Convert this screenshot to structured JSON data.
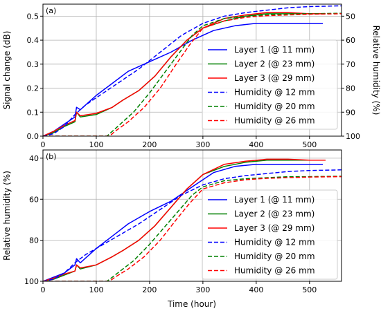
{
  "figure": {
    "xlabel": "Time (hour)"
  },
  "colors": {
    "blue": "#0000ff",
    "green": "#008000",
    "red": "#ff0000"
  },
  "chart_data": [
    {
      "type": "line",
      "panel_label": "(a)",
      "xlabel": "",
      "ylabel": "Signal change (dB)",
      "y2label": "Relative humidity (%)",
      "xlim": [
        0,
        560
      ],
      "ylim": [
        0,
        0.55
      ],
      "y2lim": [
        100,
        45
      ],
      "x_ticks": [
        0,
        100,
        200,
        300,
        400,
        500
      ],
      "y_ticks": [
        0.0,
        0.1,
        0.2,
        0.3,
        0.4,
        0.5
      ],
      "y2_ticks": [
        50,
        60,
        70,
        80,
        90,
        100
      ],
      "grid": true,
      "legend_position": "lower-right",
      "series": [
        {
          "name": "Layer 1 (@ 11 mm)",
          "axis": "left",
          "style": "solid",
          "color": "blue",
          "points": [
            [
              0,
              0
            ],
            [
              20,
              0.02
            ],
            [
              40,
              0.05
            ],
            [
              60,
              0.08
            ],
            [
              63,
              0.12
            ],
            [
              70,
              0.11
            ],
            [
              100,
              0.17
            ],
            [
              130,
              0.22
            ],
            [
              160,
              0.27
            ],
            [
              200,
              0.31
            ],
            [
              240,
              0.35
            ],
            [
              280,
              0.4
            ],
            [
              320,
              0.44
            ],
            [
              360,
              0.46
            ],
            [
              400,
              0.47
            ],
            [
              440,
              0.47
            ],
            [
              480,
              0.47
            ],
            [
              525,
              0.47
            ]
          ]
        },
        {
          "name": "Layer 2 (@ 23 mm)",
          "axis": "left",
          "style": "solid",
          "color": "green",
          "points": [
            [
              0,
              0
            ],
            [
              20,
              0.015
            ],
            [
              40,
              0.04
            ],
            [
              60,
              0.06
            ],
            [
              63,
              0.1
            ],
            [
              70,
              0.08
            ],
            [
              100,
              0.09
            ],
            [
              130,
              0.12
            ],
            [
              150,
              0.15
            ],
            [
              180,
              0.19
            ],
            [
              210,
              0.25
            ],
            [
              240,
              0.33
            ],
            [
              270,
              0.4
            ],
            [
              300,
              0.45
            ],
            [
              340,
              0.48
            ],
            [
              380,
              0.5
            ],
            [
              420,
              0.51
            ],
            [
              460,
              0.51
            ],
            [
              500,
              0.51
            ],
            [
              530,
              0.51
            ]
          ]
        },
        {
          "name": "Layer 3 (@ 29 mm)",
          "axis": "left",
          "style": "solid",
          "color": "red",
          "points": [
            [
              0,
              0
            ],
            [
              20,
              0.02
            ],
            [
              40,
              0.045
            ],
            [
              60,
              0.065
            ],
            [
              63,
              0.1
            ],
            [
              70,
              0.085
            ],
            [
              100,
              0.095
            ],
            [
              130,
              0.12
            ],
            [
              150,
              0.15
            ],
            [
              180,
              0.19
            ],
            [
              210,
              0.25
            ],
            [
              240,
              0.33
            ],
            [
              270,
              0.4
            ],
            [
              300,
              0.45
            ],
            [
              340,
              0.49
            ],
            [
              380,
              0.505
            ],
            [
              420,
              0.515
            ],
            [
              460,
              0.515
            ],
            [
              500,
              0.51
            ],
            [
              530,
              0.51
            ]
          ]
        },
        {
          "name": "Humidity @ 12 mm",
          "axis": "right",
          "style": "dashed",
          "color": "blue",
          "points": [
            [
              0,
              100
            ],
            [
              20,
              99
            ],
            [
              40,
              96
            ],
            [
              60,
              91
            ],
            [
              80,
              87
            ],
            [
              100,
              84
            ],
            [
              140,
              78
            ],
            [
              180,
              72
            ],
            [
              220,
              65
            ],
            [
              260,
              58
            ],
            [
              300,
              53
            ],
            [
              340,
              50
            ],
            [
              380,
              48.5
            ],
            [
              420,
              47.5
            ],
            [
              460,
              46.5
            ],
            [
              500,
              46
            ],
            [
              560,
              45.7
            ]
          ]
        },
        {
          "name": "Humidity @ 20 mm",
          "axis": "right",
          "style": "dashed",
          "color": "green",
          "points": [
            [
              0,
              100
            ],
            [
              120,
              100
            ],
            [
              130,
              98
            ],
            [
              150,
              94
            ],
            [
              170,
              90
            ],
            [
              200,
              82
            ],
            [
              230,
              73
            ],
            [
              260,
              64
            ],
            [
              280,
              58
            ],
            [
              300,
              54
            ],
            [
              340,
              51
            ],
            [
              380,
              50
            ],
            [
              420,
              49.5
            ],
            [
              460,
              49
            ],
            [
              500,
              49
            ],
            [
              560,
              48.8
            ]
          ]
        },
        {
          "name": "Humidity @ 26 mm",
          "axis": "right",
          "style": "dashed",
          "color": "red",
          "points": [
            [
              0,
              100
            ],
            [
              125,
              100
            ],
            [
              135,
              98
            ],
            [
              160,
              94
            ],
            [
              190,
              88
            ],
            [
              220,
              80
            ],
            [
              250,
              70
            ],
            [
              275,
              62
            ],
            [
              300,
              55
            ],
            [
              340,
              52
            ],
            [
              380,
              50.5
            ],
            [
              420,
              49.8
            ],
            [
              460,
              49.5
            ],
            [
              500,
              49.2
            ],
            [
              560,
              49
            ]
          ]
        }
      ]
    },
    {
      "type": "line",
      "panel_label": "(b)",
      "xlabel": "Time (hour)",
      "ylabel": "Relative humidity (%)",
      "xlim": [
        0,
        560
      ],
      "ylim": [
        100,
        36
      ],
      "x_ticks": [
        0,
        100,
        200,
        300,
        400,
        500
      ],
      "y_ticks": [
        40,
        60,
        80,
        100
      ],
      "grid": true,
      "legend_position": "lower-right",
      "series": [
        {
          "name": "Layer 1 (@ 11 mm)",
          "style": "solid",
          "color": "blue",
          "points": [
            [
              0,
              100
            ],
            [
              20,
              98
            ],
            [
              40,
              96
            ],
            [
              60,
              92
            ],
            [
              63,
              89
            ],
            [
              70,
              91
            ],
            [
              100,
              84
            ],
            [
              130,
              78
            ],
            [
              160,
              72
            ],
            [
              200,
              66
            ],
            [
              240,
              61
            ],
            [
              280,
              54
            ],
            [
              320,
              47
            ],
            [
              360,
              44
            ],
            [
              400,
              43
            ],
            [
              440,
              43
            ],
            [
              480,
              43
            ],
            [
              525,
              43
            ]
          ]
        },
        {
          "name": "Layer 2 (@ 23 mm)",
          "style": "solid",
          "color": "green",
          "points": [
            [
              0,
              100
            ],
            [
              20,
              99
            ],
            [
              40,
              97
            ],
            [
              60,
              95
            ],
            [
              63,
              92
            ],
            [
              70,
              94
            ],
            [
              100,
              92
            ],
            [
              130,
              88
            ],
            [
              150,
              85
            ],
            [
              180,
              80
            ],
            [
              210,
              73
            ],
            [
              240,
              64
            ],
            [
              270,
              55
            ],
            [
              300,
              48
            ],
            [
              340,
              44
            ],
            [
              380,
              42
            ],
            [
              420,
              41
            ],
            [
              460,
              41
            ],
            [
              500,
              41
            ],
            [
              530,
              41
            ]
          ]
        },
        {
          "name": "Layer 3 (@ 29 mm)",
          "style": "solid",
          "color": "red",
          "points": [
            [
              0,
              100
            ],
            [
              20,
              98.5
            ],
            [
              40,
              96.5
            ],
            [
              60,
              95
            ],
            [
              63,
              92
            ],
            [
              70,
              93.5
            ],
            [
              100,
              92
            ],
            [
              130,
              88
            ],
            [
              150,
              85
            ],
            [
              180,
              80
            ],
            [
              210,
              73
            ],
            [
              240,
              64
            ],
            [
              270,
              55
            ],
            [
              300,
              48
            ],
            [
              340,
              43
            ],
            [
              380,
              41.5
            ],
            [
              420,
              40.5
            ],
            [
              460,
              40.5
            ],
            [
              500,
              41
            ],
            [
              530,
              41
            ]
          ]
        },
        {
          "name": "Humidity @ 12 mm",
          "style": "dashed",
          "color": "blue",
          "points": [
            [
              0,
              100
            ],
            [
              20,
              99
            ],
            [
              40,
              96
            ],
            [
              60,
              91
            ],
            [
              80,
              87
            ],
            [
              100,
              84
            ],
            [
              140,
              78
            ],
            [
              180,
              72
            ],
            [
              220,
              65
            ],
            [
              260,
              58
            ],
            [
              300,
              53
            ],
            [
              340,
              50
            ],
            [
              380,
              48.5
            ],
            [
              420,
              47.5
            ],
            [
              460,
              46.5
            ],
            [
              500,
              46
            ],
            [
              560,
              45.7
            ]
          ]
        },
        {
          "name": "Humidity @ 20 mm",
          "style": "dashed",
          "color": "green",
          "points": [
            [
              0,
              100
            ],
            [
              120,
              100
            ],
            [
              130,
              98
            ],
            [
              150,
              94
            ],
            [
              170,
              90
            ],
            [
              200,
              82
            ],
            [
              230,
              73
            ],
            [
              260,
              64
            ],
            [
              280,
              58
            ],
            [
              300,
              54
            ],
            [
              340,
              51
            ],
            [
              380,
              50
            ],
            [
              420,
              49.5
            ],
            [
              460,
              49
            ],
            [
              500,
              49
            ],
            [
              560,
              48.8
            ]
          ]
        },
        {
          "name": "Humidity @ 26 mm",
          "style": "dashed",
          "color": "red",
          "points": [
            [
              0,
              100
            ],
            [
              125,
              100
            ],
            [
              135,
              98
            ],
            [
              160,
              94
            ],
            [
              190,
              88
            ],
            [
              220,
              80
            ],
            [
              250,
              70
            ],
            [
              275,
              62
            ],
            [
              300,
              55
            ],
            [
              340,
              52
            ],
            [
              380,
              50.5
            ],
            [
              420,
              49.8
            ],
            [
              460,
              49.5
            ],
            [
              500,
              49.2
            ],
            [
              560,
              49
            ]
          ]
        }
      ]
    }
  ]
}
